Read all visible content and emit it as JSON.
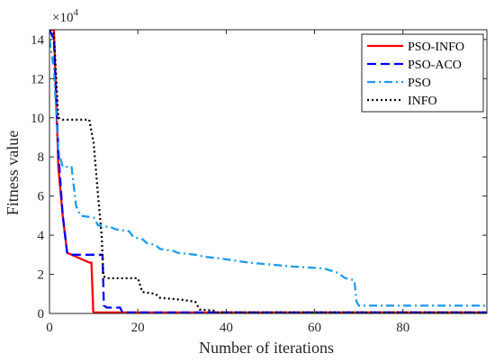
{
  "chart_data": {
    "type": "line",
    "title": "",
    "xlabel": "Number of iterations",
    "ylabel": "Fitness value",
    "y_exponent_label": "×10",
    "y_exponent_power": "4",
    "xlim": [
      0,
      99
    ],
    "ylim": [
      0,
      14.5
    ],
    "y_units": "x 10^4",
    "xticks": [
      0,
      20,
      40,
      60,
      80
    ],
    "yticks": [
      0,
      2,
      4,
      6,
      8,
      10,
      12,
      14
    ],
    "grid": false,
    "legend_position": "top-right",
    "series": [
      {
        "name": "PSO-INFO",
        "color": "#ff0000",
        "dash": "solid",
        "points": [
          [
            0,
            14.5
          ],
          [
            1,
            14.5
          ],
          [
            2,
            7.5
          ],
          [
            3,
            5.0
          ],
          [
            4,
            3.1
          ],
          [
            5,
            3.0
          ],
          [
            6,
            2.9
          ],
          [
            7,
            2.8
          ],
          [
            8,
            2.7
          ],
          [
            9,
            2.6
          ],
          [
            9.5,
            2.6
          ],
          [
            9.9,
            0.1
          ],
          [
            10,
            0.05
          ],
          [
            99,
            0.05
          ]
        ]
      },
      {
        "name": "PSO-ACO",
        "color": "#0000ff",
        "dash": "dashed",
        "points": [
          [
            0,
            14.5
          ],
          [
            1,
            14.0
          ],
          [
            2,
            8.3
          ],
          [
            3,
            5.0
          ],
          [
            4,
            3.1
          ],
          [
            5,
            3.0
          ],
          [
            12,
            3.0
          ],
          [
            12.3,
            0.4
          ],
          [
            13,
            0.3
          ],
          [
            16,
            0.3
          ],
          [
            16.5,
            0.05
          ],
          [
            99,
            0.05
          ]
        ]
      },
      {
        "name": "PSO",
        "color": "#1e9bf0",
        "dash": "dashdot",
        "points": [
          [
            0,
            14.0
          ],
          [
            1,
            12.5
          ],
          [
            2,
            8.3
          ],
          [
            3,
            7.5
          ],
          [
            5,
            7.5
          ],
          [
            6,
            5.5
          ],
          [
            7,
            5.0
          ],
          [
            10,
            4.9
          ],
          [
            11,
            4.5
          ],
          [
            14,
            4.4
          ],
          [
            15,
            4.3
          ],
          [
            18,
            4.2
          ],
          [
            19,
            3.9
          ],
          [
            21,
            3.8
          ],
          [
            22,
            3.6
          ],
          [
            24,
            3.5
          ],
          [
            25,
            3.3
          ],
          [
            28,
            3.2
          ],
          [
            29,
            3.1
          ],
          [
            33,
            3.0
          ],
          [
            35,
            2.9
          ],
          [
            39,
            2.8
          ],
          [
            45,
            2.6
          ],
          [
            50,
            2.5
          ],
          [
            55,
            2.4
          ],
          [
            62,
            2.3
          ],
          [
            65,
            2.1
          ],
          [
            67,
            1.8
          ],
          [
            69,
            1.7
          ],
          [
            69.5,
            0.6
          ],
          [
            70,
            0.4
          ],
          [
            99,
            0.4
          ]
        ]
      },
      {
        "name": "INFO",
        "color": "#000000",
        "dash": "dotted",
        "points": [
          [
            0,
            14.5
          ],
          [
            1,
            14.3
          ],
          [
            2,
            10.0
          ],
          [
            3,
            9.9
          ],
          [
            9,
            9.9
          ],
          [
            10,
            8.7
          ],
          [
            11,
            6.0
          ],
          [
            11.8,
            4.0
          ],
          [
            12.2,
            1.9
          ],
          [
            13,
            1.8
          ],
          [
            20,
            1.8
          ],
          [
            21,
            1.1
          ],
          [
            24,
            1.0
          ],
          [
            25,
            0.8
          ],
          [
            30,
            0.7
          ],
          [
            33,
            0.6
          ],
          [
            34,
            0.2
          ],
          [
            37,
            0.15
          ],
          [
            38,
            0.05
          ],
          [
            99,
            0.05
          ]
        ]
      }
    ]
  }
}
